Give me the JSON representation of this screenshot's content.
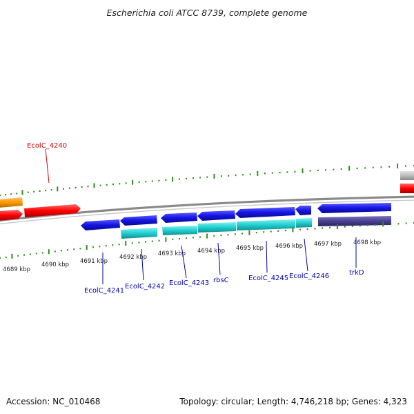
{
  "title": "Escherichia coli ATCC 8739, complete genome",
  "footer": {
    "accession": "Accession: NC_010468",
    "summary": "Topology: circular; Length: 4,746,218 bp; Genes: 4,323"
  },
  "colors": {
    "forward_cds": "#ff0000",
    "forward_other": "#ff9900",
    "forward_misc": "#bbbbbb",
    "reverse_cds": "#1414e6",
    "reverse_gene": "#20cfd0",
    "reverse_dark": "#4a4090",
    "tick": "#2e8b1e",
    "backbone": "#8a8a8a",
    "label_forward": "#cc0000",
    "label_reverse": "#0000aa"
  },
  "ticks": [
    {
      "label": "4689 kbp"
    },
    {
      "label": "4690 kbp"
    },
    {
      "label": "4691 kbp"
    },
    {
      "label": "4692 kbp"
    },
    {
      "label": "4693 kbp"
    },
    {
      "label": "4694 kbp"
    },
    {
      "label": "4695 kbp"
    },
    {
      "label": "4696 kbp"
    },
    {
      "label": "4697 kbp"
    },
    {
      "label": "4698 kbp"
    }
  ],
  "gene_labels": [
    {
      "text": "EcolC_4240",
      "strand": "forward"
    },
    {
      "text": "EcolC_4241",
      "strand": "reverse"
    },
    {
      "text": "EcolC_4242",
      "strand": "reverse"
    },
    {
      "text": "EcolC_4243",
      "strand": "reverse"
    },
    {
      "text": "rbsC",
      "strand": "reverse"
    },
    {
      "text": "EcolC_4245",
      "strand": "reverse"
    },
    {
      "text": "EcolC_4246",
      "strand": "reverse"
    },
    {
      "text": "trkD",
      "strand": "reverse"
    }
  ]
}
